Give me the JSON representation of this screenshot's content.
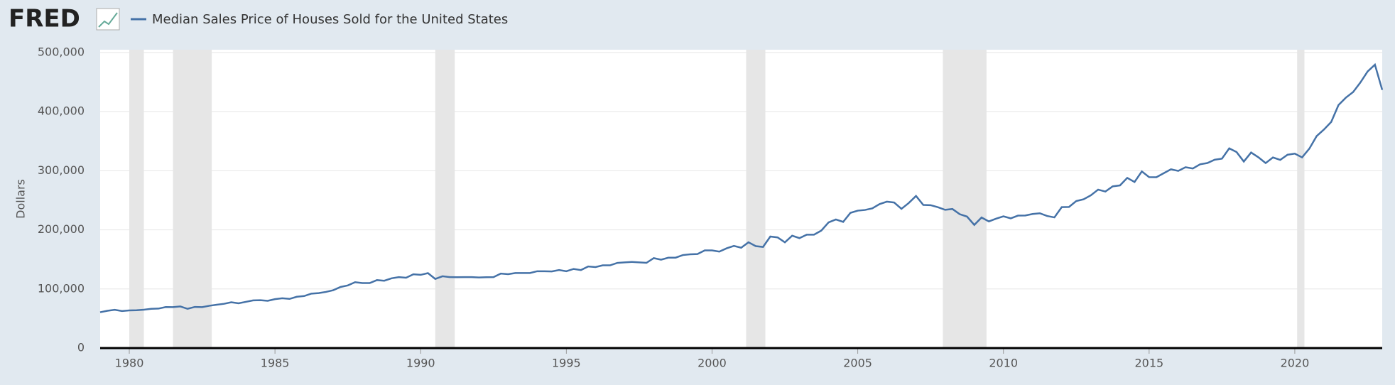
{
  "brand": "FRED",
  "chart_data": {
    "type": "line",
    "ylabel": "Dollars",
    "series": [
      {
        "name": "Median Sales Price of Houses Sold for the United States",
        "color": "#4572a7",
        "values": [
          60600,
          63100,
          64700,
          62600,
          63700,
          64000,
          64900,
          66400,
          66800,
          69400,
          69200,
          70400,
          66400,
          69600,
          69300,
          71600,
          73300,
          74900,
          77500,
          75800,
          78200,
          80700,
          81000,
          79900,
          82800,
          84300,
          83200,
          86800,
          88000,
          92100,
          93000,
          95000,
          97900,
          103400,
          106000,
          111500,
          110000,
          110000,
          115000,
          113900,
          118000,
          120000,
          119000,
          124800,
          123900,
          126800,
          117000,
          121500,
          120000,
          119900,
          120000,
          120000,
          119500,
          119900,
          120000,
          126000,
          125000,
          127000,
          127000,
          127000,
          130000,
          130000,
          129700,
          132000,
          130000,
          133900,
          132000,
          138000,
          137000,
          140000,
          140000,
          144100,
          145000,
          145800,
          145000,
          144200,
          152200,
          149500,
          152900,
          153000,
          157400,
          158700,
          159100,
          165300,
          165300,
          163200,
          168800,
          172900,
          169800,
          179000,
          172500,
          171100,
          188700,
          187200,
          178900,
          190100,
          186000,
          191800,
          191900,
          198800,
          212700,
          217600,
          213500,
          228800,
          232500,
          233700,
          236400,
          243600,
          247700,
          246300,
          235600,
          245400,
          257400,
          242200,
          241800,
          238400,
          233900,
          235300,
          226500,
          222500,
          208400,
          220900,
          214300,
          219000,
          222900,
          219500,
          224100,
          224300,
          226900,
          228100,
          223500,
          221100,
          238400,
          238700,
          248800,
          251700,
          258400,
          268100,
          264800,
          273600,
          275200,
          288000,
          281000,
          298900,
          289200,
          289100,
          295800,
          302500,
          299800,
          306000,
          303800,
          310900,
          313100,
          318700,
          320500,
          337900,
          331800,
          315600,
          330900,
          322800,
          313000,
          322500,
          318400,
          327100,
          329000,
          322600,
          337500,
          358700,
          369800,
          382600,
          411200,
          423600,
          433100,
          449300,
          468000,
          479500,
          436800
        ]
      }
    ],
    "x": [
      1979,
      1979.25,
      1979.5,
      1979.75,
      1980,
      1980.25,
      1980.5,
      1980.75,
      1981,
      1981.25,
      1981.5,
      1981.75,
      1982,
      1982.25,
      1982.5,
      1982.75,
      1983,
      1983.25,
      1983.5,
      1983.75,
      1984,
      1984.25,
      1984.5,
      1984.75,
      1985,
      1985.25,
      1985.5,
      1985.75,
      1986,
      1986.25,
      1986.5,
      1986.75,
      1987,
      1987.25,
      1987.5,
      1987.75,
      1988,
      1988.25,
      1988.5,
      1988.75,
      1989,
      1989.25,
      1989.5,
      1989.75,
      1990,
      1990.25,
      1990.5,
      1990.75,
      1991,
      1991.25,
      1991.5,
      1991.75,
      1992,
      1992.25,
      1992.5,
      1992.75,
      1993,
      1993.25,
      1993.5,
      1993.75,
      1994,
      1994.25,
      1994.5,
      1994.75,
      1995,
      1995.25,
      1995.5,
      1995.75,
      1996,
      1996.25,
      1996.5,
      1996.75,
      1997,
      1997.25,
      1997.5,
      1997.75,
      1998,
      1998.25,
      1998.5,
      1998.75,
      1999,
      1999.25,
      1999.5,
      1999.75,
      2000,
      2000.25,
      2000.5,
      2000.75,
      2001,
      2001.25,
      2001.5,
      2001.75,
      2002,
      2002.25,
      2002.5,
      2002.75,
      2003,
      2003.25,
      2003.5,
      2003.75,
      2004,
      2004.25,
      2004.5,
      2004.75,
      2005,
      2005.25,
      2005.5,
      2005.75,
      2006,
      2006.25,
      2006.5,
      2006.75,
      2007,
      2007.25,
      2007.5,
      2007.75,
      2008,
      2008.25,
      2008.5,
      2008.75,
      2009,
      2009.25,
      2009.5,
      2009.75,
      2010,
      2010.25,
      2010.5,
      2010.75,
      2011,
      2011.25,
      2011.5,
      2011.75,
      2012,
      2012.25,
      2012.5,
      2012.75,
      2013,
      2013.25,
      2013.5,
      2013.75,
      2014,
      2014.25,
      2014.5,
      2014.75,
      2015,
      2015.25,
      2015.5,
      2015.75,
      2016,
      2016.25,
      2016.5,
      2016.75,
      2017,
      2017.25,
      2017.5,
      2017.75,
      2018,
      2018.25,
      2018.5,
      2018.75,
      2019,
      2019.25,
      2019.5,
      2019.75,
      2020,
      2020.25,
      2020.5,
      2020.75,
      2021,
      2021.25,
      2021.5,
      2021.75,
      2022,
      2022.25,
      2022.5,
      2022.75,
      2023
    ],
    "recessions": [
      [
        1980,
        1980.5
      ],
      [
        1981.5,
        1982.83
      ],
      [
        1990.5,
        1991.17
      ],
      [
        2001.17,
        2001.83
      ],
      [
        2007.92,
        2009.42
      ],
      [
        2020.08,
        2020.33
      ]
    ],
    "recession_color": "#e6e6e6",
    "xlim": [
      1979,
      2023
    ],
    "xticks": [
      1980,
      1985,
      1990,
      1995,
      2000,
      2005,
      2010,
      2015,
      2020
    ],
    "ylim": [
      0,
      500000
    ],
    "yticks": [
      0,
      {
        "value": 100000,
        "label": "100,000"
      },
      {
        "value": 200000,
        "label": "200,000"
      },
      {
        "value": 300000,
        "label": "300,000"
      },
      {
        "value": 400000,
        "label": "400,000"
      },
      {
        "value": 500000,
        "label": "500,000"
      }
    ],
    "grid": true
  }
}
